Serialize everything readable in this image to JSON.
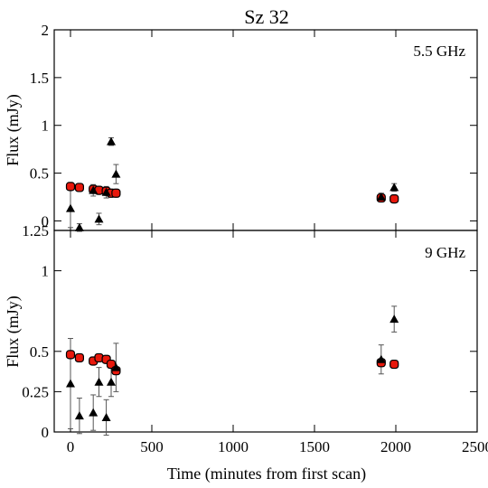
{
  "chart_data": [
    {
      "type": "scatter",
      "title": "Sz 32",
      "annotation": "5.5 GHz",
      "ylabel": "Flux (mJy)",
      "xlabel": "",
      "xlim": [
        -100,
        2500
      ],
      "ylim": [
        -0.1,
        2.0
      ],
      "yticks": [
        0,
        0.5,
        1,
        1.5,
        2
      ],
      "ytick_labels": [
        "0",
        "0.5",
        "1",
        "1.5",
        "2"
      ],
      "xticks": [
        0,
        500,
        1000,
        1500,
        2000,
        2500
      ],
      "xtick_labels": [],
      "colors": {
        "circle": "#e8180c",
        "triangle": "#000000"
      },
      "series": [
        {
          "marker": "circle",
          "points": [
            {
              "x": 0,
              "y": 0.36,
              "err": 0.02
            },
            {
              "x": 55,
              "y": 0.35,
              "err": 0.02
            },
            {
              "x": 140,
              "y": 0.33,
              "err": 0.02
            },
            {
              "x": 175,
              "y": 0.32,
              "err": 0.02
            },
            {
              "x": 220,
              "y": 0.31,
              "err": 0.02
            },
            {
              "x": 250,
              "y": 0.29,
              "err": 0.02
            },
            {
              "x": 280,
              "y": 0.29,
              "err": 0.02
            },
            {
              "x": 1910,
              "y": 0.24,
              "err": 0.02
            },
            {
              "x": 1990,
              "y": 0.23,
              "err": 0.02
            }
          ]
        },
        {
          "marker": "triangle",
          "points": [
            {
              "x": 0,
              "y": 0.13,
              "err": 0.2
            },
            {
              "x": 55,
              "y": -0.07,
              "err": 0.04
            },
            {
              "x": 140,
              "y": 0.32,
              "err": 0.06
            },
            {
              "x": 175,
              "y": 0.02,
              "err": 0.06
            },
            {
              "x": 220,
              "y": 0.3,
              "err": 0.06
            },
            {
              "x": 250,
              "y": 0.83,
              "err": 0.04
            },
            {
              "x": 280,
              "y": 0.49,
              "err": 0.1
            },
            {
              "x": 1910,
              "y": 0.25,
              "err": 0.04
            },
            {
              "x": 1990,
              "y": 0.35,
              "err": 0.04
            }
          ]
        }
      ]
    },
    {
      "type": "scatter",
      "title": "",
      "annotation": "9 GHz",
      "ylabel": "Flux (mJy)",
      "xlabel": "Time (minutes from first scan)",
      "xlim": [
        -100,
        2500
      ],
      "ylim": [
        0,
        1.25
      ],
      "yticks": [
        0,
        0.25,
        0.5,
        1,
        1.25
      ],
      "ytick_labels": [
        "0",
        "0.25",
        "0.5",
        "1",
        "1.25"
      ],
      "xticks": [
        0,
        500,
        1000,
        1500,
        2000,
        2500
      ],
      "xtick_labels": [
        "0",
        "500",
        "1000",
        "1500",
        "2000",
        "2500"
      ],
      "colors": {
        "circle": "#e8180c",
        "triangle": "#000000"
      },
      "series": [
        {
          "marker": "circle",
          "points": [
            {
              "x": 0,
              "y": 0.48,
              "err": 0.02
            },
            {
              "x": 55,
              "y": 0.46,
              "err": 0.02
            },
            {
              "x": 140,
              "y": 0.44,
              "err": 0.02
            },
            {
              "x": 175,
              "y": 0.46,
              "err": 0.02
            },
            {
              "x": 220,
              "y": 0.45,
              "err": 0.02
            },
            {
              "x": 250,
              "y": 0.42,
              "err": 0.02
            },
            {
              "x": 280,
              "y": 0.38,
              "err": 0.02
            },
            {
              "x": 1910,
              "y": 0.43,
              "err": 0.02
            },
            {
              "x": 1990,
              "y": 0.42,
              "err": 0.02
            }
          ]
        },
        {
          "marker": "triangle",
          "points": [
            {
              "x": 0,
              "y": 0.3,
              "err": 0.28
            },
            {
              "x": 55,
              "y": 0.1,
              "err": 0.11
            },
            {
              "x": 140,
              "y": 0.12,
              "err": 0.11
            },
            {
              "x": 175,
              "y": 0.31,
              "err": 0.09
            },
            {
              "x": 220,
              "y": 0.09,
              "err": 0.11
            },
            {
              "x": 250,
              "y": 0.31,
              "err": 0.09
            },
            {
              "x": 280,
              "y": 0.4,
              "err": 0.15
            },
            {
              "x": 1910,
              "y": 0.45,
              "err": 0.09
            },
            {
              "x": 1990,
              "y": 0.7,
              "err": 0.08
            }
          ]
        }
      ]
    }
  ]
}
